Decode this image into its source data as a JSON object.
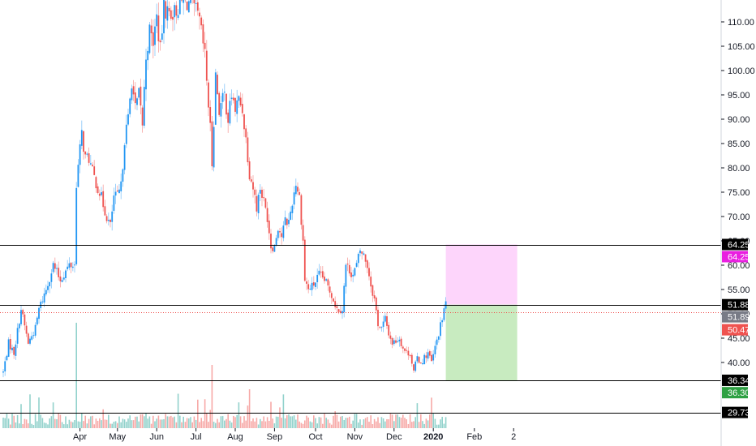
{
  "colors": {
    "up": "#2196f3",
    "down": "#ef5350",
    "vol_up": "#26a69a",
    "vol_down": "#ef5350",
    "level_line": "#000000",
    "last_price_line": "#ef5350",
    "profit_zone": "#c8ebc0",
    "loss_zone": "#fdd5fb",
    "target_badge": "#e91fe0",
    "stop_badge": "#2ea043",
    "entry_badge": "#787b86",
    "last_badge": "#ef5350"
  },
  "chart_data": {
    "type": "candlestick",
    "title": "",
    "xlabel": "",
    "ylabel": "",
    "ylim": [
      26.5,
      114.5
    ],
    "y_ticks": [
      "110.00",
      "105.00",
      "100.00",
      "95.00",
      "90.00",
      "85.00",
      "80.00",
      "75.00",
      "70.00",
      "65.00",
      "60.00",
      "55.00",
      "50.00",
      "45.00",
      "40.00"
    ],
    "x_ticks": [
      {
        "label": "Apr",
        "bar": 43,
        "bold": false
      },
      {
        "label": "May",
        "bar": 64,
        "bold": false
      },
      {
        "label": "Jun",
        "bar": 86,
        "bold": false
      },
      {
        "label": "Jul",
        "bar": 108,
        "bold": false
      },
      {
        "label": "Aug",
        "bar": 130,
        "bold": false
      },
      {
        "label": "Sep",
        "bar": 152,
        "bold": false
      },
      {
        "label": "Oct",
        "bar": 175,
        "bold": false
      },
      {
        "label": "Nov",
        "bar": 197,
        "bold": false
      },
      {
        "label": "Dec",
        "bar": 219,
        "bold": false
      },
      {
        "label": "2020",
        "bar": 241,
        "bold": true
      },
      {
        "label": "Feb",
        "bar": 264,
        "bold": false
      },
      {
        "label": "2",
        "bar": 286,
        "bold": false
      }
    ],
    "horizontal_levels": [
      {
        "value": 64.25,
        "label": "64.25"
      },
      {
        "value": 51.88,
        "label": "51.88"
      },
      {
        "value": 36.34,
        "label": "36.34"
      },
      {
        "value": 29.73,
        "label": "29.73"
      }
    ],
    "position_tool": {
      "start_bar": 248,
      "end_bar": 288,
      "entry": 51.89,
      "entry_label": "51.89",
      "target": 64.25,
      "target_label": "64.25",
      "stop": 36.3,
      "stop_label": "36.30"
    },
    "last_price": {
      "value": 50.47,
      "label": "50.47"
    },
    "bar_count": 251,
    "anchors": [
      [
        0,
        38
      ],
      [
        3,
        44
      ],
      [
        6,
        42
      ],
      [
        10,
        51
      ],
      [
        14,
        44
      ],
      [
        18,
        47
      ],
      [
        20,
        51
      ],
      [
        24,
        55
      ],
      [
        28,
        60
      ],
      [
        32,
        57
      ],
      [
        37,
        60
      ],
      [
        40,
        60
      ],
      [
        41,
        77
      ],
      [
        44,
        87
      ],
      [
        46,
        82
      ],
      [
        48,
        82
      ],
      [
        50,
        79
      ],
      [
        54,
        75
      ],
      [
        58,
        70
      ],
      [
        60,
        68
      ],
      [
        62,
        74
      ],
      [
        64,
        74
      ],
      [
        66,
        76
      ],
      [
        68,
        86
      ],
      [
        70,
        90
      ],
      [
        72,
        98
      ],
      [
        74,
        92
      ],
      [
        76,
        95
      ],
      [
        78,
        89
      ],
      [
        80,
        103
      ],
      [
        82,
        108
      ],
      [
        84,
        106
      ],
      [
        86,
        111
      ],
      [
        88,
        104
      ],
      [
        90,
        113
      ],
      [
        92,
        112
      ],
      [
        96,
        112
      ],
      [
        100,
        114
      ],
      [
        104,
        114
      ],
      [
        108,
        112
      ],
      [
        110,
        110
      ],
      [
        113,
        103
      ],
      [
        116,
        88
      ],
      [
        117,
        81
      ],
      [
        119,
        99
      ],
      [
        121,
        92
      ],
      [
        124,
        95
      ],
      [
        126,
        90
      ],
      [
        128,
        95
      ],
      [
        130,
        92
      ],
      [
        132,
        94
      ],
      [
        134,
        92
      ],
      [
        136,
        86
      ],
      [
        138,
        79
      ],
      [
        140,
        76
      ],
      [
        142,
        72
      ],
      [
        144,
        76
      ],
      [
        146,
        73
      ],
      [
        148,
        70
      ],
      [
        150,
        64
      ],
      [
        152,
        64
      ],
      [
        154,
        68
      ],
      [
        156,
        66
      ],
      [
        158,
        69
      ],
      [
        160,
        69
      ],
      [
        162,
        73
      ],
      [
        164,
        77
      ],
      [
        166,
        74
      ],
      [
        168,
        65
      ],
      [
        169,
        57
      ],
      [
        171,
        55
      ],
      [
        174,
        56
      ],
      [
        177,
        58
      ],
      [
        180,
        57
      ],
      [
        184,
        54
      ],
      [
        187,
        51
      ],
      [
        190,
        51
      ],
      [
        192,
        60
      ],
      [
        194,
        59
      ],
      [
        196,
        58
      ],
      [
        198,
        60
      ],
      [
        200,
        63
      ],
      [
        202,
        62
      ],
      [
        204,
        60
      ],
      [
        206,
        56
      ],
      [
        208,
        53
      ],
      [
        210,
        48
      ],
      [
        212,
        47
      ],
      [
        214,
        49
      ],
      [
        216,
        46
      ],
      [
        218,
        44
      ],
      [
        222,
        45
      ],
      [
        224,
        43
      ],
      [
        226,
        42
      ],
      [
        228,
        42
      ],
      [
        230,
        38
      ],
      [
        232,
        41
      ],
      [
        234,
        40
      ],
      [
        236,
        41
      ],
      [
        238,
        42
      ],
      [
        240,
        40
      ],
      [
        242,
        43
      ],
      [
        244,
        46
      ],
      [
        246,
        49
      ],
      [
        247,
        51
      ],
      [
        248,
        52
      ]
    ]
  }
}
